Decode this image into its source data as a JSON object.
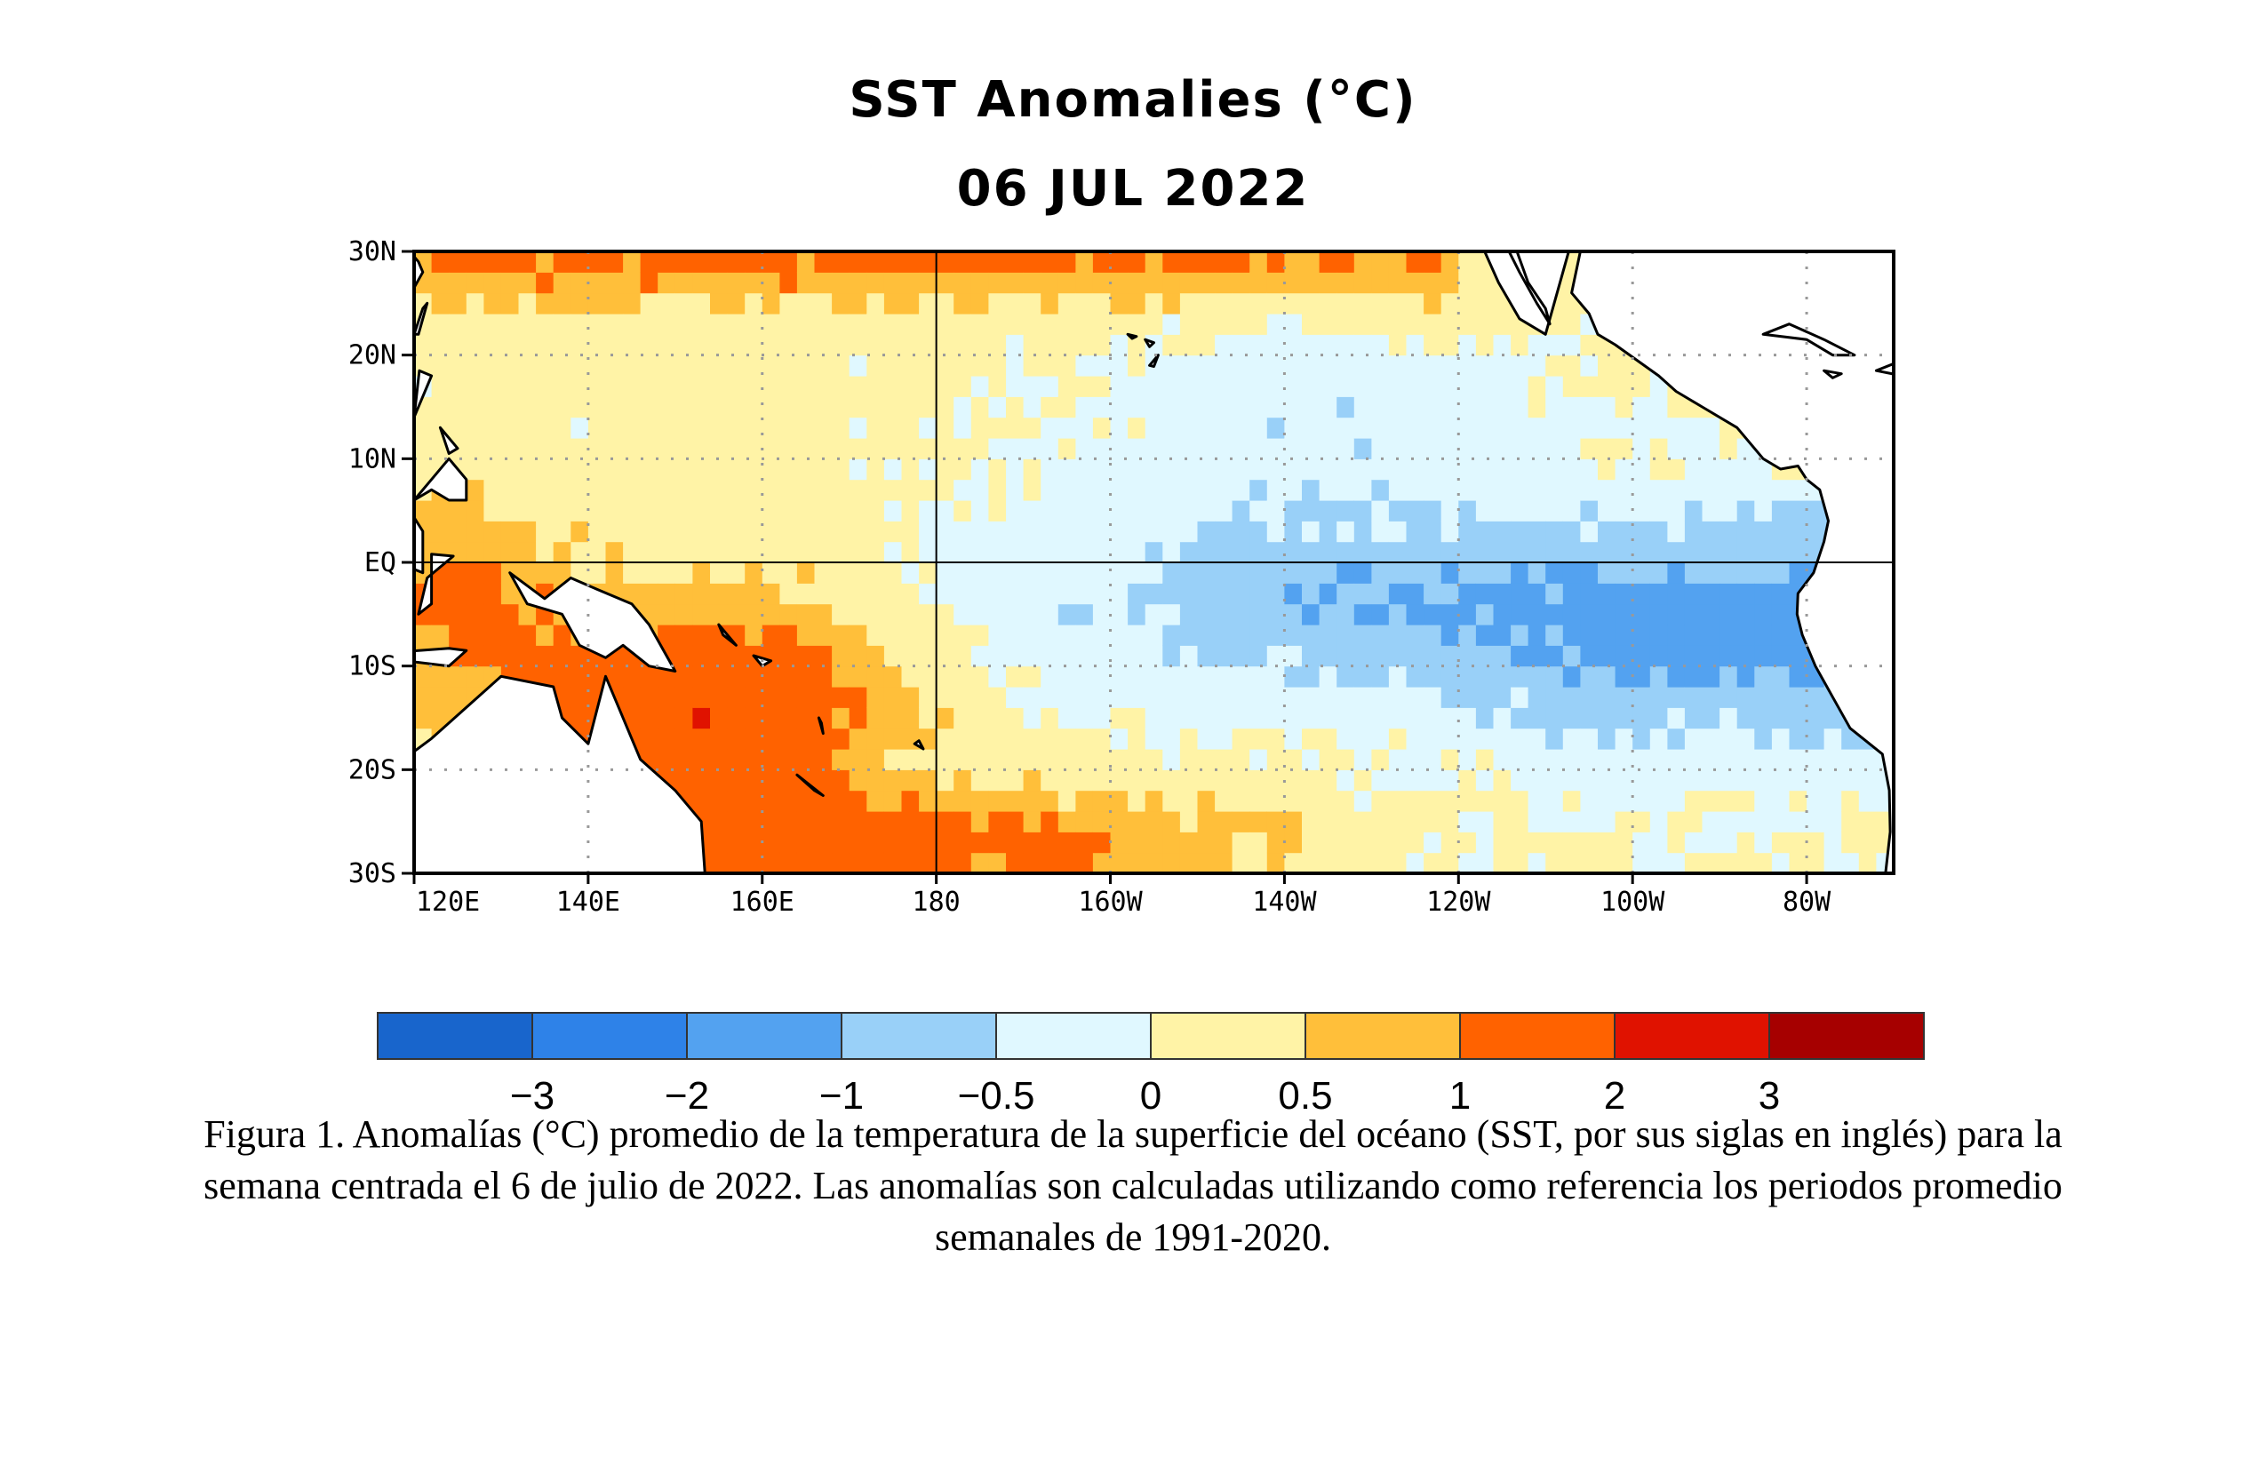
{
  "figure": {
    "title": "SST Anomalies (°C)",
    "date": "06 JUL 2022",
    "caption": "Figura 1. Anomalías (°C) promedio de la temperatura de la superficie del océano (SST, por sus siglas en inglés) para la semana centrada el 6 de julio de 2022. Las anomalías son calculadas utilizando como referencia los periodos promedio semanales de 1991-2020."
  },
  "map": {
    "region": "Tropical Pacific",
    "lon_range": [
      120,
      290
    ],
    "lat_range": [
      -30,
      30
    ],
    "y_ticks": [
      {
        "lat": 30,
        "label": "30N"
      },
      {
        "lat": 20,
        "label": "20N"
      },
      {
        "lat": 10,
        "label": "10N"
      },
      {
        "lat": 0,
        "label": "EQ"
      },
      {
        "lat": -10,
        "label": "10S"
      },
      {
        "lat": -20,
        "label": "20S"
      },
      {
        "lat": -30,
        "label": "30S"
      }
    ],
    "x_ticks": [
      {
        "lon": 120,
        "label": "120E"
      },
      {
        "lon": 140,
        "label": "140E"
      },
      {
        "lon": 160,
        "label": "160E"
      },
      {
        "lon": 180,
        "label": "180"
      },
      {
        "lon": 200,
        "label": "160W"
      },
      {
        "lon": 220,
        "label": "140W"
      },
      {
        "lon": 240,
        "label": "120W"
      },
      {
        "lon": 260,
        "label": "100W"
      },
      {
        "lon": 280,
        "label": "80W"
      }
    ],
    "land_color": "#ffffff",
    "coast_color": "#000000"
  },
  "colorbar": {
    "colors": [
      "#1865cc",
      "#2e82e8",
      "#53a2f0",
      "#99d0f8",
      "#e0f8ff",
      "#fff3a6",
      "#ffbf3a",
      "#ff6200",
      "#e01200",
      "#a60000"
    ],
    "tick_labels": [
      "−3",
      "−2",
      "−1",
      "−0.5",
      "0",
      "0.5",
      "1",
      "2",
      "3"
    ]
  }
}
